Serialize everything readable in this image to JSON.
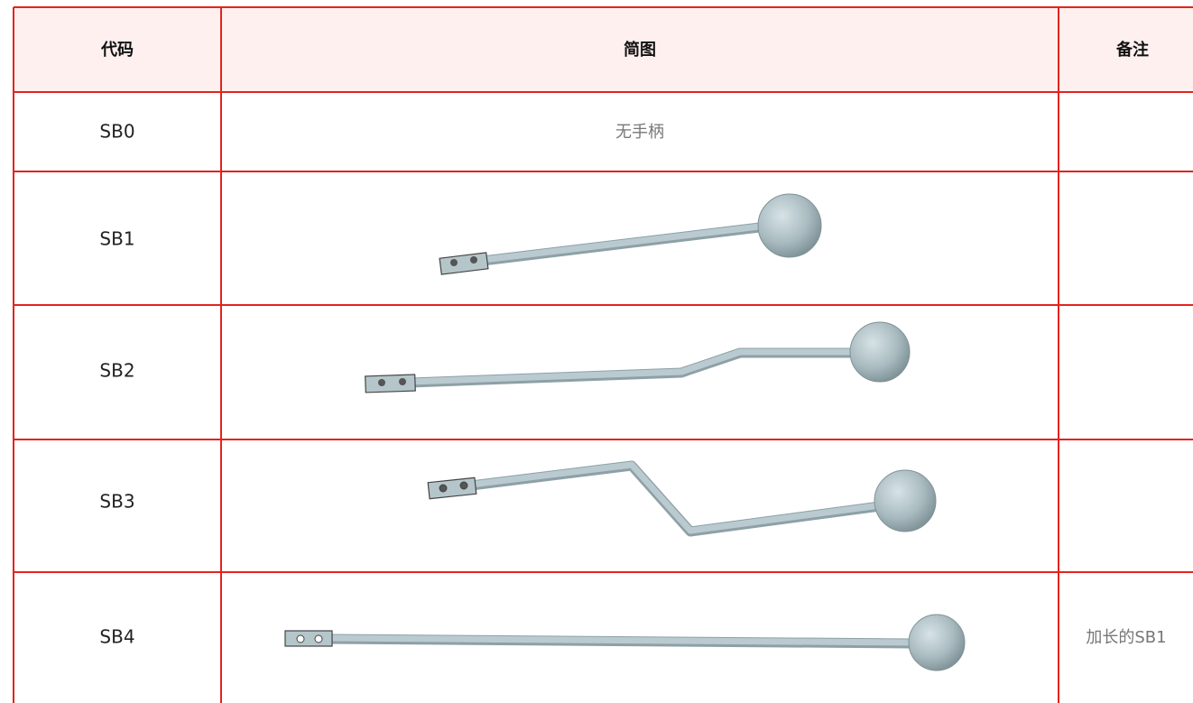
{
  "table": {
    "header": [
      "代码",
      "简图",
      "备注"
    ],
    "rows": [
      {
        "code": "SB0",
        "diagram_text": "无手柄"
      },
      {
        "code": "SB1"
      },
      {
        "code": "SB2"
      },
      {
        "code": "SB3"
      },
      {
        "code": "SB4",
        "note": "加长的SB1"
      }
    ]
  }
}
